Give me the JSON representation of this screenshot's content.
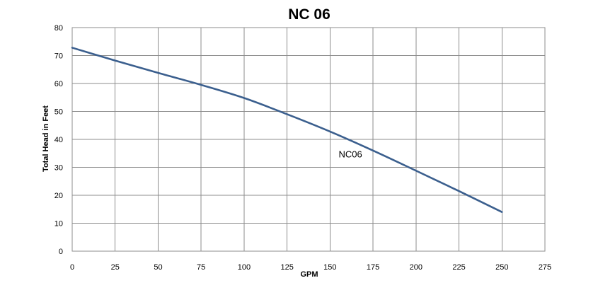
{
  "chart_data": {
    "type": "line",
    "title": "NC 06",
    "xlabel": "GPM",
    "ylabel": "Total Head  in  Feet",
    "xlim": [
      0,
      275
    ],
    "ylim": [
      0,
      80
    ],
    "x_ticks": [
      "0",
      "25",
      "50",
      "75",
      "100",
      "125",
      "150",
      "175",
      "200",
      "225",
      "250",
      "275"
    ],
    "y_ticks": [
      "0",
      "10",
      "20",
      "30",
      "40",
      "50",
      "60",
      "70",
      "80"
    ],
    "grid": true,
    "series": [
      {
        "name": "NC06",
        "color": "#3b5f8e",
        "x": [
          0,
          25,
          50,
          75,
          100,
          125,
          150,
          175,
          200,
          225,
          250
        ],
        "y": [
          72.8,
          68.2,
          63.8,
          59.5,
          54.8,
          49.0,
          42.8,
          36.0,
          28.8,
          21.5,
          14.0
        ]
      }
    ]
  }
}
